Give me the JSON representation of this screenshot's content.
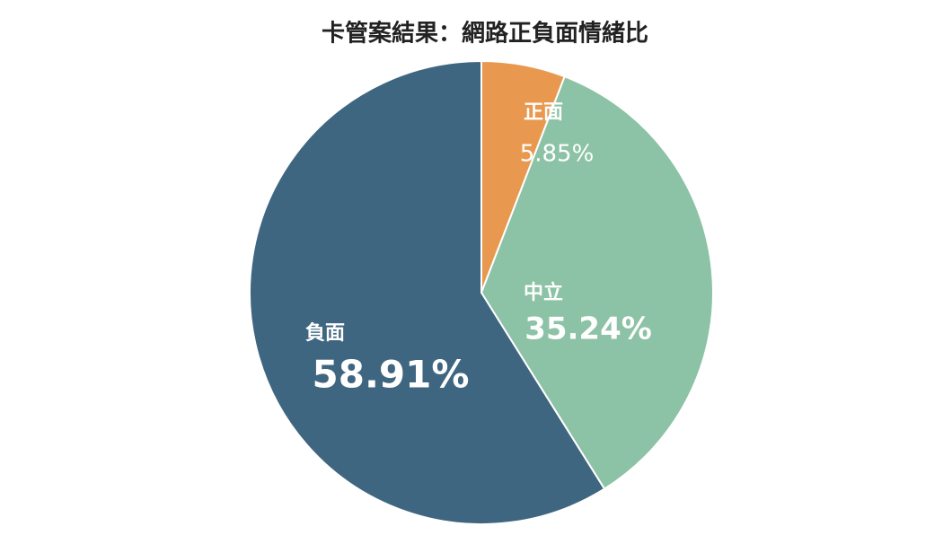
{
  "chart_data": {
    "type": "pie",
    "title": "卡管案結果：網路正負面情緒比",
    "categories": [
      "正面",
      "中立",
      "負面"
    ],
    "values": [
      5.85,
      35.24,
      58.91
    ],
    "value_labels": [
      "5.85%",
      "35.24%",
      "58.91%"
    ],
    "colors": [
      "#e8994f",
      "#8cc2a5",
      "#3f6680"
    ]
  }
}
